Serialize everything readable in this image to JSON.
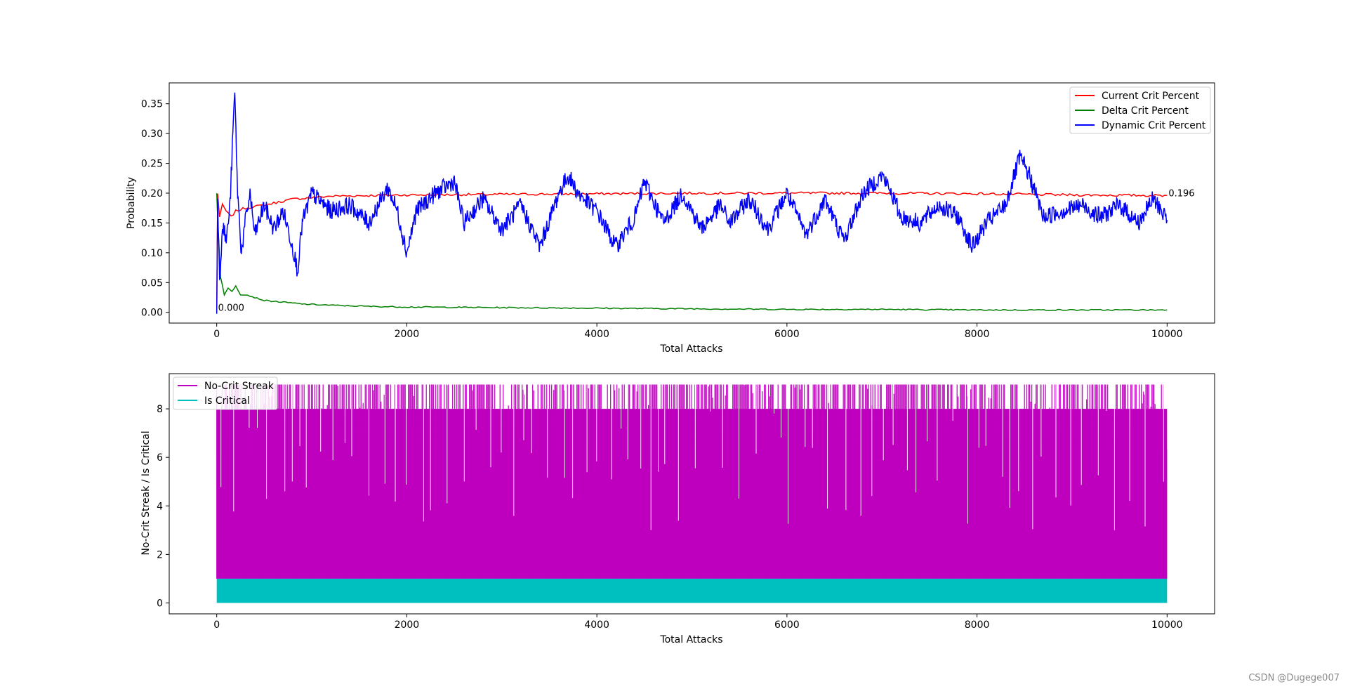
{
  "watermark": "CSDN @Dugege007",
  "colors": {
    "current_crit": "#ff0000",
    "delta_crit": "#008000",
    "dynamic_crit": "#0000ff",
    "no_crit_streak": "#bf00bf",
    "is_critical": "#00bfbf",
    "annotation_text": "#000000"
  },
  "chart_data": [
    {
      "type": "line",
      "xlabel": "Total Attacks",
      "ylabel": "Probability",
      "xlim": [
        -500,
        10500
      ],
      "ylim": [
        -0.018,
        0.385
      ],
      "xticks": [
        0,
        2000,
        4000,
        6000,
        8000,
        10000
      ],
      "yticks": [
        0.0,
        0.05,
        0.1,
        0.15,
        0.2,
        0.25,
        0.3,
        0.35
      ],
      "ytick_labels": [
        "0.00",
        "0.05",
        "0.10",
        "0.15",
        "0.20",
        "0.25",
        "0.30",
        "0.35"
      ],
      "legend_position": "upper right",
      "annotations_visible": [
        "0.000",
        "0.196"
      ],
      "series": [
        {
          "name": "Current Crit Percent",
          "color": "#ff0000",
          "x": [
            0,
            10,
            30,
            60,
            100,
            150,
            200,
            300,
            500,
            800,
            1200,
            2000,
            3000,
            4000,
            5000,
            6000,
            7000,
            8000,
            9000,
            10000
          ],
          "y": [
            0.0,
            0.2,
            0.16,
            0.18,
            0.17,
            0.16,
            0.17,
            0.175,
            0.18,
            0.19,
            0.195,
            0.197,
            0.198,
            0.199,
            0.2,
            0.2,
            0.2,
            0.199,
            0.197,
            0.196
          ]
        },
        {
          "name": "Delta Crit Percent",
          "color": "#008000",
          "x": [
            0,
            10,
            40,
            80,
            120,
            160,
            200,
            250,
            300,
            400,
            500,
            700,
            900,
            1200,
            1600,
            2000,
            3000,
            4000,
            5000,
            6000,
            7000,
            8000,
            9000,
            10000
          ],
          "y": [
            0.2,
            0.16,
            0.06,
            0.03,
            0.04,
            0.035,
            0.045,
            0.03,
            0.03,
            0.025,
            0.02,
            0.017,
            0.014,
            0.012,
            0.01,
            0.009,
            0.008,
            0.007,
            0.006,
            0.005,
            0.005,
            0.004,
            0.004,
            0.004
          ]
        },
        {
          "name": "Dynamic Crit Percent",
          "color": "#0000ff",
          "x": [
            0,
            10,
            30,
            60,
            100,
            140,
            170,
            190,
            220,
            260,
            300,
            350,
            400,
            500,
            600,
            700,
            800,
            850,
            900,
            1000,
            1200,
            1400,
            1600,
            1800,
            1900,
            2000,
            2100,
            2300,
            2500,
            2600,
            2800,
            3000,
            3200,
            3400,
            3600,
            3700,
            3800,
            4000,
            4200,
            4400,
            4500,
            4700,
            4900,
            5100,
            5300,
            5400,
            5600,
            5800,
            6000,
            6200,
            6400,
            6600,
            6800,
            7000,
            7100,
            7200,
            7400,
            7600,
            7800,
            7950,
            8100,
            8300,
            8450,
            8550,
            8700,
            8900,
            9100,
            9300,
            9500,
            9700,
            9850,
            9950,
            10000
          ],
          "y": [
            0.0,
            0.2,
            0.05,
            0.15,
            0.12,
            0.18,
            0.3,
            0.37,
            0.2,
            0.1,
            0.15,
            0.2,
            0.13,
            0.18,
            0.14,
            0.17,
            0.11,
            0.07,
            0.15,
            0.2,
            0.17,
            0.18,
            0.15,
            0.21,
            0.17,
            0.1,
            0.17,
            0.2,
            0.22,
            0.15,
            0.19,
            0.14,
            0.18,
            0.11,
            0.2,
            0.23,
            0.2,
            0.17,
            0.11,
            0.16,
            0.22,
            0.15,
            0.2,
            0.14,
            0.18,
            0.15,
            0.19,
            0.14,
            0.2,
            0.13,
            0.19,
            0.12,
            0.2,
            0.23,
            0.2,
            0.16,
            0.15,
            0.18,
            0.16,
            0.11,
            0.15,
            0.18,
            0.26,
            0.23,
            0.16,
            0.17,
            0.18,
            0.16,
            0.18,
            0.15,
            0.19,
            0.17,
            0.155
          ]
        }
      ]
    },
    {
      "type": "line",
      "xlabel": "Total Attacks",
      "ylabel": "No-Crit Streak / Is Critical",
      "xlim": [
        -500,
        10500
      ],
      "ylim": [
        -0.45,
        9.45
      ],
      "xticks": [
        0,
        2000,
        4000,
        6000,
        8000,
        10000
      ],
      "yticks": [
        0,
        2,
        4,
        6,
        8
      ],
      "legend_position": "upper left",
      "series": [
        {
          "name": "No-Crit Streak",
          "color": "#bf00bf",
          "range": [
            0,
            9
          ],
          "x_extent": [
            0,
            10000
          ]
        },
        {
          "name": "Is Critical",
          "color": "#00bfbf",
          "range": [
            0,
            1
          ],
          "x_extent": [
            0,
            10000
          ]
        }
      ]
    }
  ]
}
